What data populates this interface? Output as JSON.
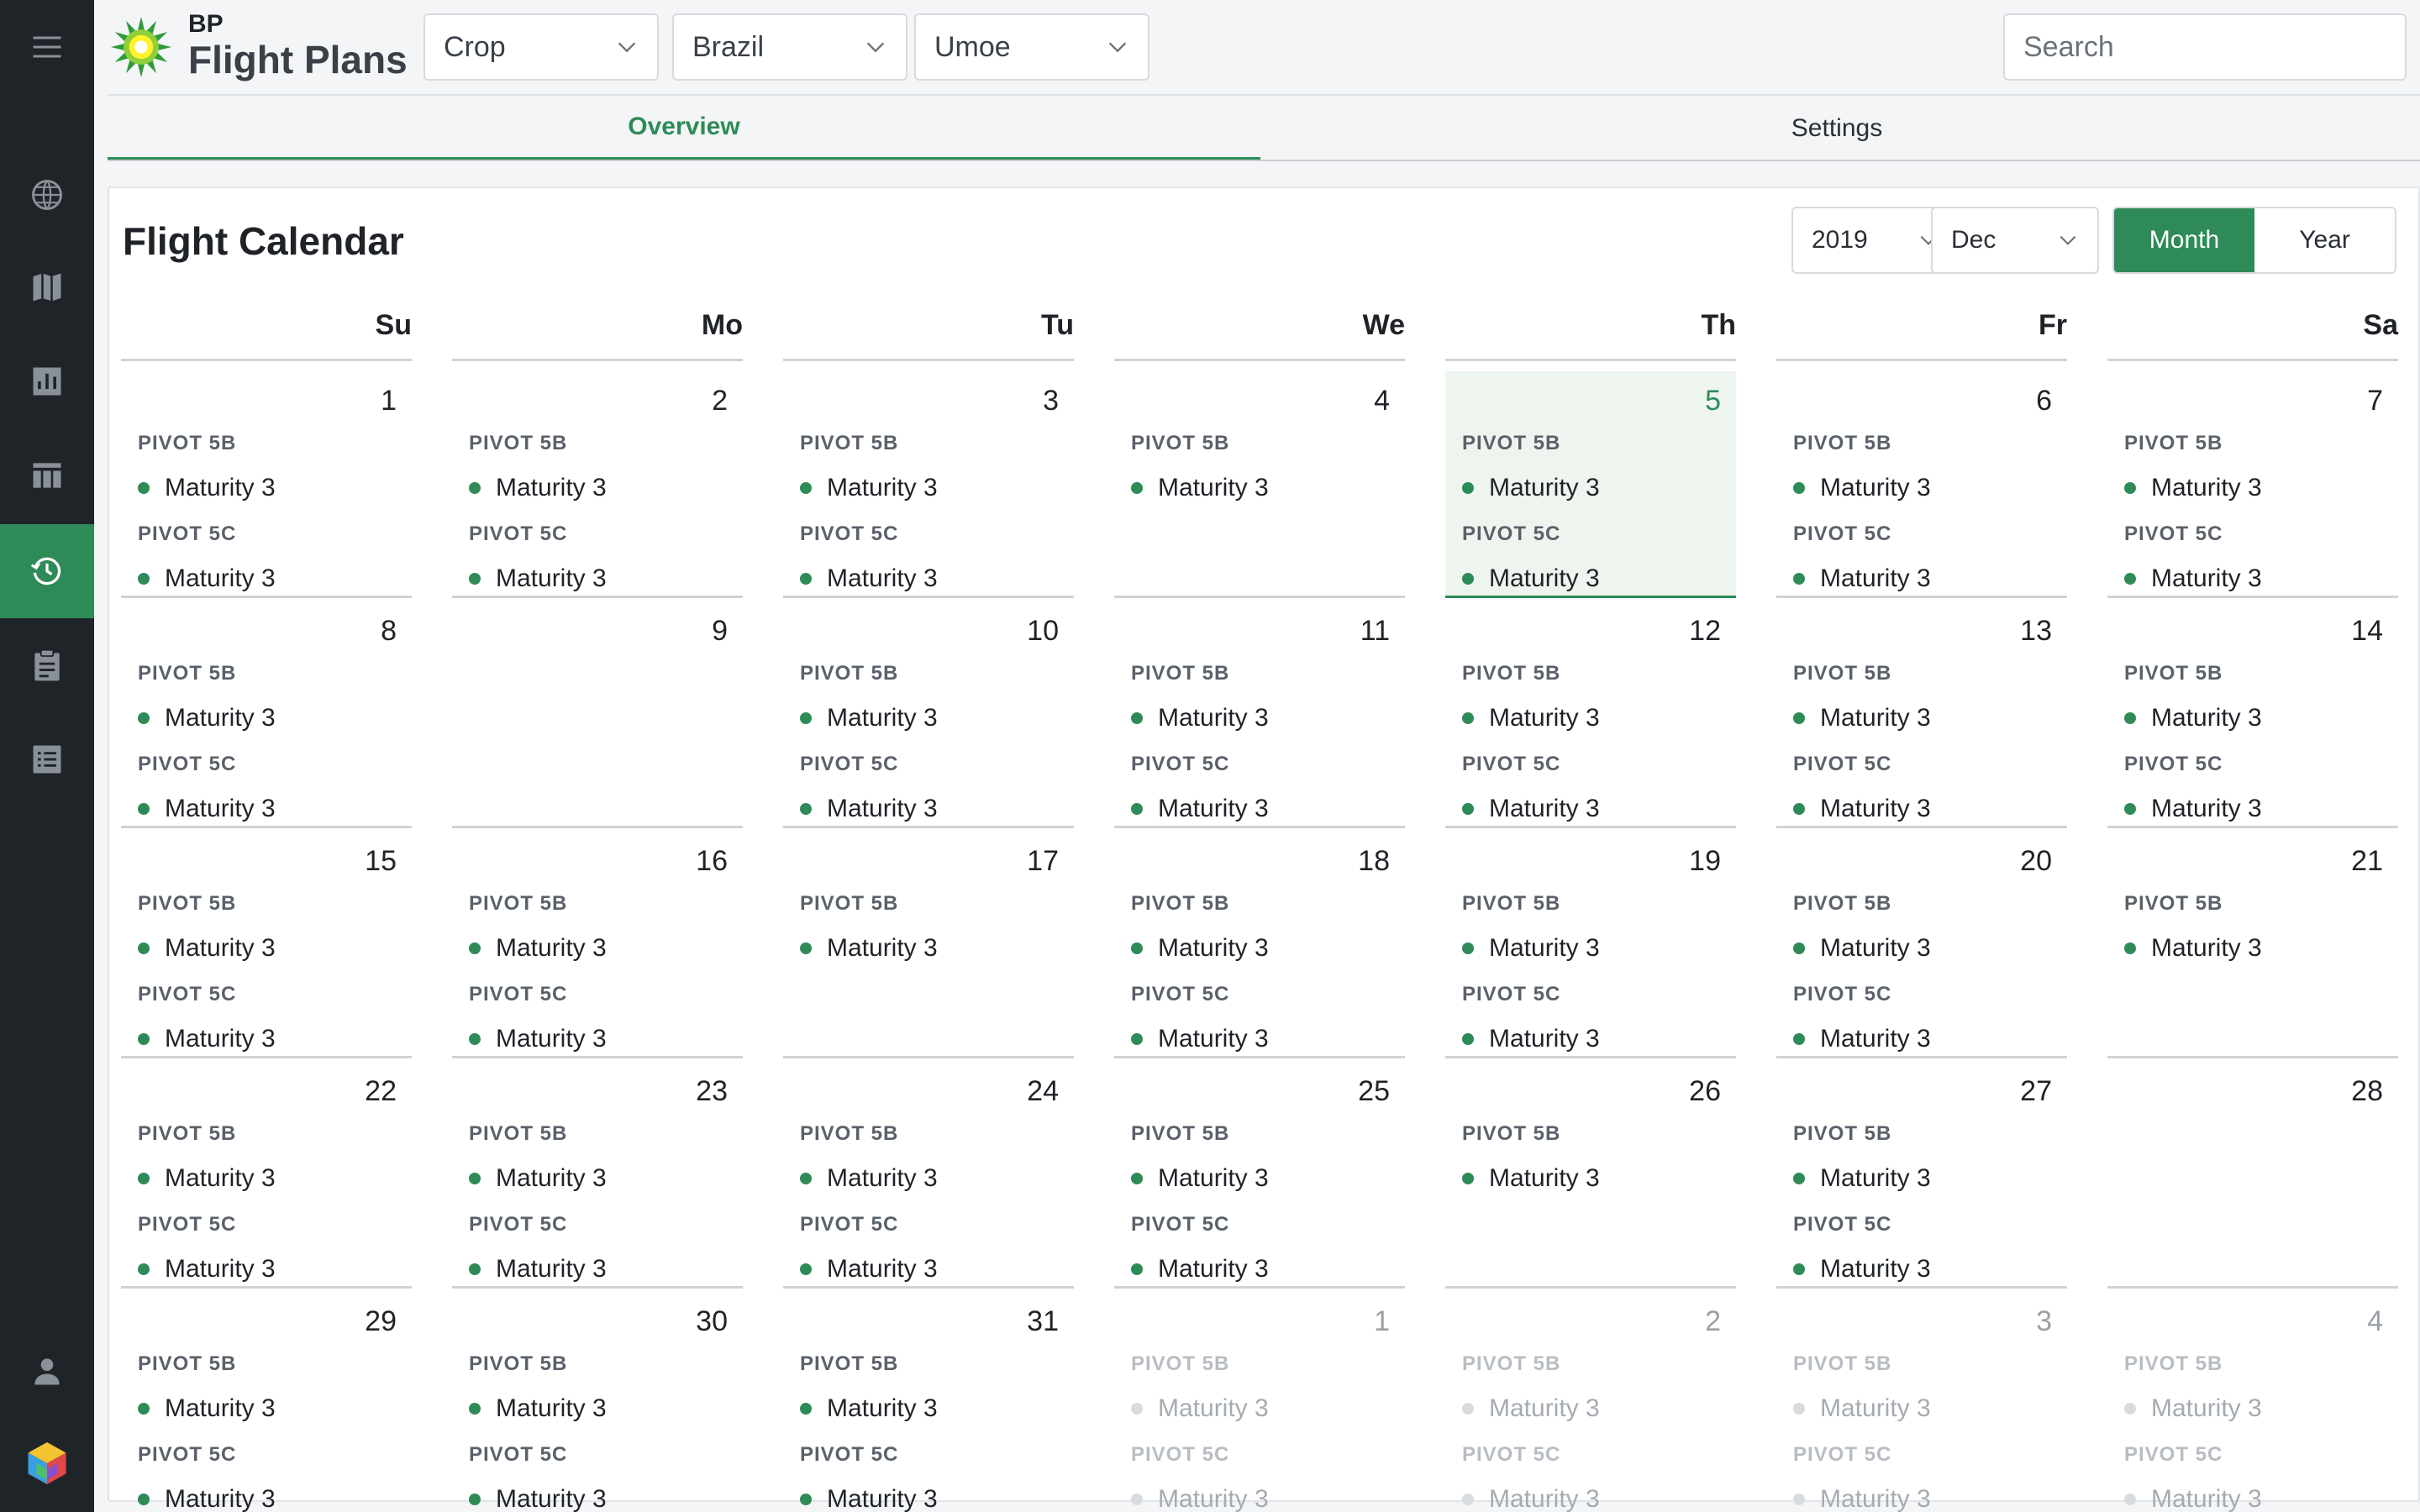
{
  "app": {
    "brand_small": "BP",
    "brand_title": "Flight Plans"
  },
  "header": {
    "filters": [
      {
        "name": "crop-select",
        "value": "Crop"
      },
      {
        "name": "country-select",
        "value": "Brazil"
      },
      {
        "name": "farm-select",
        "value": "Umoe"
      }
    ],
    "search_placeholder": "Search"
  },
  "sidebar": {
    "items": [
      {
        "name": "menu-icon"
      },
      {
        "name": "globe-icon"
      },
      {
        "name": "map-icon"
      },
      {
        "name": "bar-chart-icon"
      },
      {
        "name": "table-icon"
      },
      {
        "name": "history-clock-icon",
        "active": true
      },
      {
        "name": "clipboard-icon"
      },
      {
        "name": "list-icon"
      },
      {
        "name": "user-icon"
      },
      {
        "name": "app-cube-icon"
      }
    ]
  },
  "tabs": [
    {
      "label": "Overview",
      "active": true
    },
    {
      "label": "Settings",
      "active": false
    }
  ],
  "calendar": {
    "title": "Flight Calendar",
    "year": "2019",
    "month": "Dec",
    "view_options": [
      {
        "label": "Month",
        "active": true
      },
      {
        "label": "Year",
        "active": false
      }
    ],
    "weekdays": [
      "Su",
      "Mo",
      "Tu",
      "We",
      "Th",
      "Fr",
      "Sa"
    ],
    "days": [
      {
        "n": "1",
        "plans": [
          {
            "pivot": "PIVOT 5B",
            "status": "Maturity 3"
          },
          {
            "pivot": "PIVOT 5C",
            "status": "Maturity 3"
          }
        ]
      },
      {
        "n": "2",
        "plans": [
          {
            "pivot": "PIVOT 5B",
            "status": "Maturity 3"
          },
          {
            "pivot": "PIVOT 5C",
            "status": "Maturity 3"
          }
        ]
      },
      {
        "n": "3",
        "plans": [
          {
            "pivot": "PIVOT 5B",
            "status": "Maturity 3"
          },
          {
            "pivot": "PIVOT 5C",
            "status": "Maturity 3"
          }
        ]
      },
      {
        "n": "4",
        "plans": [
          {
            "pivot": "PIVOT 5B",
            "status": "Maturity 3"
          }
        ]
      },
      {
        "n": "5",
        "today": true,
        "plans": [
          {
            "pivot": "PIVOT 5B",
            "status": "Maturity 3"
          },
          {
            "pivot": "PIVOT 5C",
            "status": "Maturity 3"
          }
        ]
      },
      {
        "n": "6",
        "plans": [
          {
            "pivot": "PIVOT 5B",
            "status": "Maturity 3"
          },
          {
            "pivot": "PIVOT 5C",
            "status": "Maturity 3"
          }
        ]
      },
      {
        "n": "7",
        "plans": [
          {
            "pivot": "PIVOT 5B",
            "status": "Maturity 3"
          },
          {
            "pivot": "PIVOT 5C",
            "status": "Maturity 3"
          }
        ]
      },
      {
        "n": "8",
        "plans": [
          {
            "pivot": "PIVOT 5B",
            "status": "Maturity 3"
          },
          {
            "pivot": "PIVOT 5C",
            "status": "Maturity 3"
          }
        ]
      },
      {
        "n": "9",
        "plans": []
      },
      {
        "n": "10",
        "plans": [
          {
            "pivot": "PIVOT 5B",
            "status": "Maturity 3"
          },
          {
            "pivot": "PIVOT 5C",
            "status": "Maturity 3"
          }
        ]
      },
      {
        "n": "11",
        "plans": [
          {
            "pivot": "PIVOT 5B",
            "status": "Maturity 3"
          },
          {
            "pivot": "PIVOT 5C",
            "status": "Maturity 3"
          }
        ]
      },
      {
        "n": "12",
        "plans": [
          {
            "pivot": "PIVOT 5B",
            "status": "Maturity 3"
          },
          {
            "pivot": "PIVOT 5C",
            "status": "Maturity 3"
          }
        ]
      },
      {
        "n": "13",
        "plans": [
          {
            "pivot": "PIVOT 5B",
            "status": "Maturity 3"
          },
          {
            "pivot": "PIVOT 5C",
            "status": "Maturity 3"
          }
        ]
      },
      {
        "n": "14",
        "plans": [
          {
            "pivot": "PIVOT 5B",
            "status": "Maturity 3"
          },
          {
            "pivot": "PIVOT 5C",
            "status": "Maturity 3"
          }
        ]
      },
      {
        "n": "15",
        "plans": [
          {
            "pivot": "PIVOT 5B",
            "status": "Maturity 3"
          },
          {
            "pivot": "PIVOT 5C",
            "status": "Maturity 3"
          }
        ]
      },
      {
        "n": "16",
        "plans": [
          {
            "pivot": "PIVOT 5B",
            "status": "Maturity 3"
          },
          {
            "pivot": "PIVOT 5C",
            "status": "Maturity 3"
          }
        ]
      },
      {
        "n": "17",
        "plans": [
          {
            "pivot": "PIVOT 5B",
            "status": "Maturity 3"
          }
        ]
      },
      {
        "n": "18",
        "plans": [
          {
            "pivot": "PIVOT 5B",
            "status": "Maturity 3"
          },
          {
            "pivot": "PIVOT 5C",
            "status": "Maturity 3"
          }
        ]
      },
      {
        "n": "19",
        "plans": [
          {
            "pivot": "PIVOT 5B",
            "status": "Maturity 3"
          },
          {
            "pivot": "PIVOT 5C",
            "status": "Maturity 3"
          }
        ]
      },
      {
        "n": "20",
        "plans": [
          {
            "pivot": "PIVOT 5B",
            "status": "Maturity 3"
          },
          {
            "pivot": "PIVOT 5C",
            "status": "Maturity 3"
          }
        ]
      },
      {
        "n": "21",
        "plans": [
          {
            "pivot": "PIVOT 5B",
            "status": "Maturity 3"
          }
        ]
      },
      {
        "n": "22",
        "plans": [
          {
            "pivot": "PIVOT 5B",
            "status": "Maturity 3"
          },
          {
            "pivot": "PIVOT 5C",
            "status": "Maturity 3"
          }
        ]
      },
      {
        "n": "23",
        "plans": [
          {
            "pivot": "PIVOT 5B",
            "status": "Maturity 3"
          },
          {
            "pivot": "PIVOT 5C",
            "status": "Maturity 3"
          }
        ]
      },
      {
        "n": "24",
        "plans": [
          {
            "pivot": "PIVOT 5B",
            "status": "Maturity 3"
          },
          {
            "pivot": "PIVOT 5C",
            "status": "Maturity 3"
          }
        ]
      },
      {
        "n": "25",
        "plans": [
          {
            "pivot": "PIVOT 5B",
            "status": "Maturity 3"
          },
          {
            "pivot": "PIVOT 5C",
            "status": "Maturity 3"
          }
        ]
      },
      {
        "n": "26",
        "plans": [
          {
            "pivot": "PIVOT 5B",
            "status": "Maturity 3"
          }
        ]
      },
      {
        "n": "27",
        "plans": [
          {
            "pivot": "PIVOT 5B",
            "status": "Maturity 3"
          },
          {
            "pivot": "PIVOT 5C",
            "status": "Maturity 3"
          }
        ]
      },
      {
        "n": "28",
        "plans": []
      },
      {
        "n": "29",
        "plans": [
          {
            "pivot": "PIVOT 5B",
            "status": "Maturity 3"
          },
          {
            "pivot": "PIVOT 5C",
            "status": "Maturity 3"
          }
        ]
      },
      {
        "n": "30",
        "plans": [
          {
            "pivot": "PIVOT 5B",
            "status": "Maturity 3"
          },
          {
            "pivot": "PIVOT 5C",
            "status": "Maturity 3"
          }
        ]
      },
      {
        "n": "31",
        "plans": [
          {
            "pivot": "PIVOT 5B",
            "status": "Maturity 3"
          },
          {
            "pivot": "PIVOT 5C",
            "status": "Maturity 3"
          }
        ]
      },
      {
        "n": "1",
        "faded": true,
        "plans": [
          {
            "pivot": "PIVOT 5B",
            "status": "Maturity 3"
          },
          {
            "pivot": "PIVOT 5C",
            "status": "Maturity 3"
          }
        ]
      },
      {
        "n": "2",
        "faded": true,
        "plans": [
          {
            "pivot": "PIVOT 5B",
            "status": "Maturity 3"
          },
          {
            "pivot": "PIVOT 5C",
            "status": "Maturity 3"
          }
        ]
      },
      {
        "n": "3",
        "faded": true,
        "plans": [
          {
            "pivot": "PIVOT 5B",
            "status": "Maturity 3"
          },
          {
            "pivot": "PIVOT 5C",
            "status": "Maturity 3"
          }
        ]
      },
      {
        "n": "4",
        "faded": true,
        "plans": [
          {
            "pivot": "PIVOT 5B",
            "status": "Maturity 3"
          },
          {
            "pivot": "PIVOT 5C",
            "status": "Maturity 3"
          }
        ]
      }
    ]
  },
  "colors": {
    "accent": "#2e8b57",
    "sidebar": "#1f2429",
    "today_bg": "#eef5ef"
  }
}
